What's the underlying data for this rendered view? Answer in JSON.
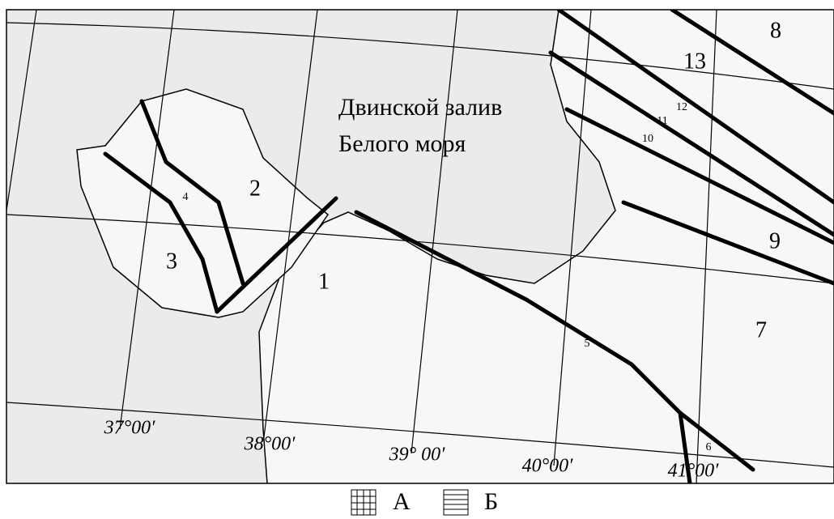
{
  "map": {
    "bay_lines": [
      "Двинской залив",
      "Белого моря"
    ],
    "zones": [
      "1",
      "2",
      "3",
      "4",
      "5",
      "6",
      "7",
      "8",
      "9",
      "10",
      "11",
      "12",
      "13"
    ],
    "longitudes": [
      "37°00′",
      "38°00′",
      "39° 00′",
      "40°00′",
      "41°00′"
    ],
    "legend": [
      "А",
      "Б"
    ]
  }
}
